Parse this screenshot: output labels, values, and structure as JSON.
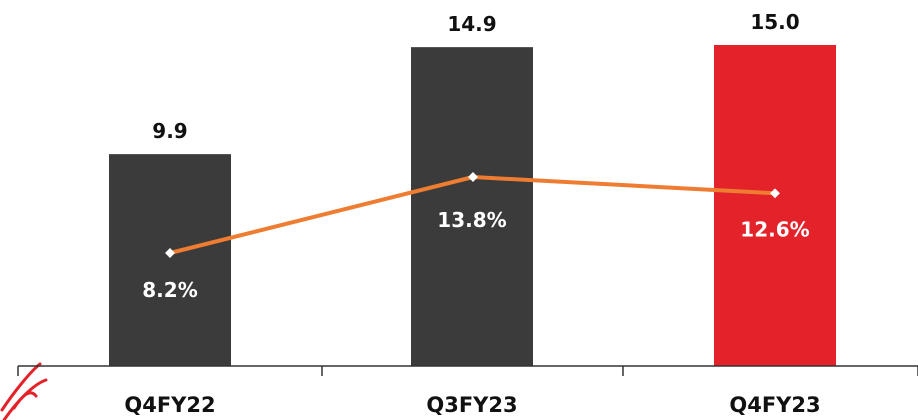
{
  "chart_data": {
    "type": "bar",
    "categories": [
      "Q4FY22",
      "Q3FY23",
      "Q4FY23"
    ],
    "series": [
      {
        "type": "bar",
        "values": [
          9.9,
          14.9,
          15.0
        ],
        "labels": [
          "9.9",
          "14.9",
          "15.0"
        ],
        "colors": [
          "#3b3b3b",
          "#3b3b3b",
          "#e3222a"
        ]
      },
      {
        "type": "line",
        "values": [
          8.2,
          13.8,
          12.6
        ],
        "labels": [
          "8.2%",
          "13.8%",
          "12.6%"
        ],
        "color": "#ee7d31"
      }
    ],
    "title": "",
    "xlabel": "",
    "ylabel": "",
    "ylim": [
      0,
      15.5
    ],
    "grid": false,
    "legend": "none"
  },
  "colors": {
    "axis": "#333333",
    "logo_mark": "#e3222a"
  },
  "icons": {
    "logo": "partial-logo-mark"
  }
}
